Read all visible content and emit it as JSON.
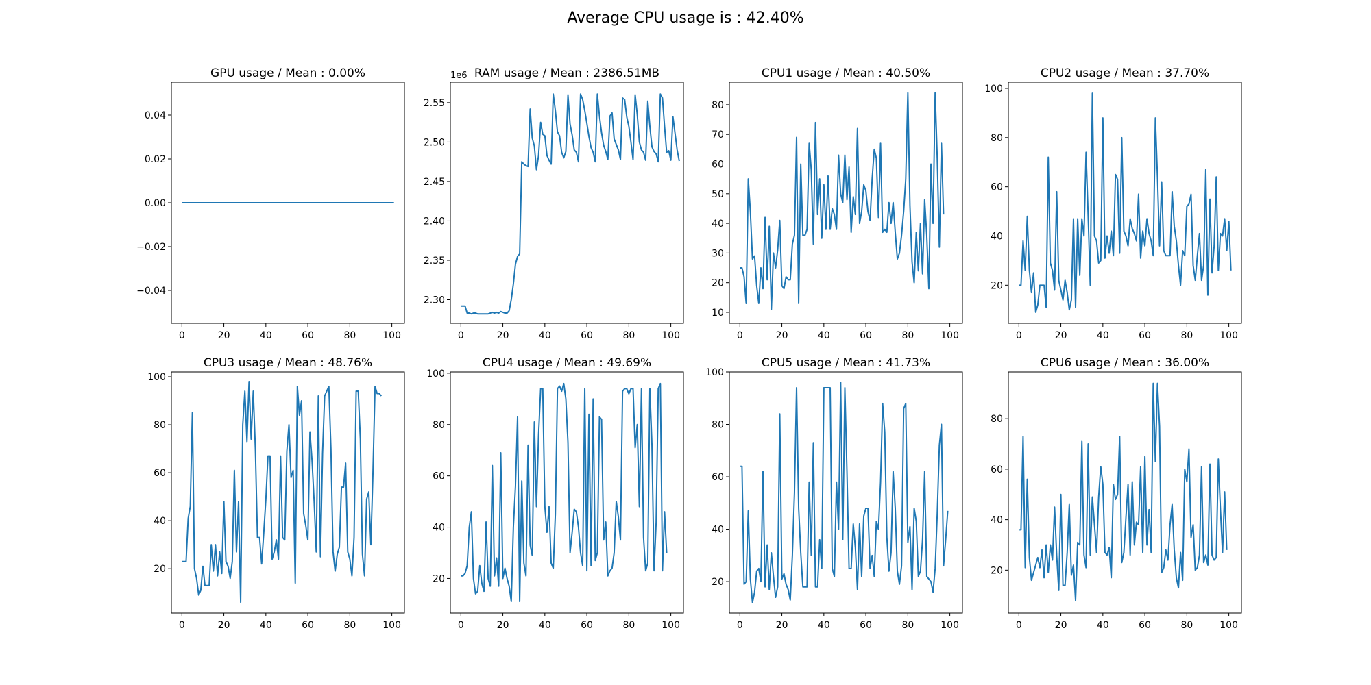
{
  "figure": {
    "title": "Average CPU usage is : 42.40%"
  },
  "chart_data": [
    {
      "type": "line",
      "title": "GPU usage / Mean : 0.00%",
      "xlim": [
        -5,
        106
      ],
      "ylim": [
        -0.055,
        0.055
      ],
      "xticks": [
        0,
        20,
        40,
        60,
        80,
        100
      ],
      "yticks": [
        -0.04,
        -0.02,
        0.0,
        0.02,
        0.04
      ],
      "ytick_labels": [
        "−0.04",
        "−0.02",
        "0.00",
        "0.02",
        "0.04"
      ],
      "offset_label": "",
      "series": [
        {
          "color": "#1f77b4",
          "values": [
            0,
            0,
            0,
            0,
            0,
            0,
            0,
            0,
            0,
            0,
            0,
            0,
            0,
            0,
            0,
            0,
            0,
            0,
            0,
            0,
            0,
            0,
            0,
            0,
            0,
            0,
            0,
            0,
            0,
            0,
            0,
            0,
            0,
            0,
            0,
            0,
            0,
            0,
            0,
            0,
            0,
            0,
            0,
            0,
            0,
            0,
            0,
            0,
            0,
            0,
            0,
            0,
            0,
            0,
            0,
            0,
            0,
            0,
            0,
            0,
            0,
            0,
            0,
            0,
            0,
            0,
            0,
            0,
            0,
            0,
            0,
            0,
            0,
            0,
            0,
            0,
            0,
            0,
            0,
            0,
            0,
            0,
            0,
            0,
            0,
            0,
            0,
            0,
            0,
            0,
            0,
            0,
            0,
            0,
            0,
            0,
            0,
            0,
            0,
            0,
            0,
            0
          ]
        }
      ]
    },
    {
      "type": "line",
      "title": "RAM usage / Mean : 2386.51MB",
      "xlim": [
        -5,
        106
      ],
      "ylim": [
        2.27,
        2.576
      ],
      "xticks": [
        0,
        20,
        40,
        60,
        80,
        100
      ],
      "yticks": [
        2.3,
        2.35,
        2.4,
        2.45,
        2.5,
        2.55
      ],
      "ytick_labels": [
        "2.30",
        "2.35",
        "2.40",
        "2.45",
        "2.50",
        "2.55"
      ],
      "offset_label": "1e6",
      "series": [
        {
          "color": "#1f77b4",
          "values": [
            2.292,
            2.292,
            2.292,
            2.283,
            2.283,
            2.282,
            2.283,
            2.283,
            2.282,
            2.282,
            2.282,
            2.282,
            2.282,
            2.282,
            2.283,
            2.284,
            2.283,
            2.284,
            2.283,
            2.285,
            2.284,
            2.283,
            2.283,
            2.286,
            2.3,
            2.32,
            2.345,
            2.355,
            2.358,
            2.475,
            2.472,
            2.47,
            2.469,
            2.542,
            2.505,
            2.495,
            2.465,
            2.483,
            2.525,
            2.51,
            2.508,
            2.483,
            2.477,
            2.472,
            2.561,
            2.54,
            2.513,
            2.508,
            2.487,
            2.48,
            2.488,
            2.56,
            2.523,
            2.509,
            2.49,
            2.487,
            2.475,
            2.561,
            2.554,
            2.54,
            2.524,
            2.507,
            2.493,
            2.487,
            2.475,
            2.561,
            2.533,
            2.512,
            2.496,
            2.488,
            2.478,
            2.533,
            2.537,
            2.504,
            2.497,
            2.49,
            2.478,
            2.556,
            2.554,
            2.532,
            2.52,
            2.5,
            2.478,
            2.56,
            2.535,
            2.5,
            2.49,
            2.487,
            2.477,
            2.552,
            2.52,
            2.494,
            2.488,
            2.485,
            2.475,
            2.561,
            2.556,
            2.52,
            2.487,
            2.489,
            2.477,
            2.532,
            2.511,
            2.49,
            2.476
          ]
        }
      ]
    },
    {
      "type": "line",
      "title": "CPU1 usage / Mean : 40.50%",
      "xlim": [
        -5,
        106
      ],
      "ylim": [
        6.3,
        87.6
      ],
      "xticks": [
        0,
        20,
        40,
        60,
        80,
        100
      ],
      "yticks": [
        10,
        20,
        30,
        40,
        50,
        60,
        70,
        80
      ],
      "ytick_labels": [
        "10",
        "20",
        "30",
        "40",
        "50",
        "60",
        "70",
        "80"
      ],
      "offset_label": "",
      "series": [
        {
          "color": "#1f77b4",
          "values": [
            25,
            25,
            22,
            13,
            55,
            44,
            28,
            29,
            19,
            13,
            25,
            18,
            42,
            21,
            39,
            11,
            30,
            25,
            31,
            41,
            19,
            18,
            22,
            21,
            21,
            33,
            36,
            69,
            13,
            60,
            36,
            36,
            38,
            67,
            58,
            33,
            74,
            43,
            55,
            35,
            53,
            38,
            56,
            38,
            45,
            43,
            38,
            63,
            50,
            47,
            63,
            48,
            59,
            37,
            49,
            43,
            72,
            40,
            44,
            53,
            51,
            44,
            41,
            55,
            65,
            62,
            42,
            67,
            37,
            38,
            37,
            47,
            40,
            47,
            37,
            28,
            30,
            36,
            44,
            55,
            84,
            46,
            27,
            20,
            37,
            24,
            40,
            23,
            48,
            36,
            18,
            60,
            40,
            84,
            62,
            32,
            67,
            43
          ]
        }
      ]
    },
    {
      "type": "line",
      "title": "CPU2 usage / Mean : 37.70%",
      "xlim": [
        -5,
        106
      ],
      "ylim": [
        4.5,
        102.5
      ],
      "xticks": [
        0,
        20,
        40,
        60,
        80,
        100
      ],
      "yticks": [
        20,
        40,
        60,
        80,
        100
      ],
      "ytick_labels": [
        "20",
        "40",
        "60",
        "80",
        "100"
      ],
      "offset_label": "",
      "series": [
        {
          "color": "#1f77b4",
          "values": [
            20,
            20,
            38,
            26,
            48,
            26,
            17,
            25,
            9,
            12,
            20,
            20,
            20,
            11,
            72,
            29,
            26,
            18,
            58,
            22,
            18,
            14,
            22,
            17,
            10,
            14,
            47,
            11,
            47,
            24,
            47,
            40,
            74,
            48,
            20,
            98,
            40,
            38,
            29,
            30,
            88,
            31,
            40,
            33,
            42,
            32,
            65,
            63,
            33,
            80,
            42,
            40,
            36,
            47,
            43,
            41,
            38,
            57,
            31,
            42,
            36,
            47,
            41,
            38,
            32,
            88,
            64,
            36,
            62,
            34,
            32,
            32,
            32,
            58,
            44,
            38,
            28,
            20,
            34,
            32,
            52,
            53,
            57,
            28,
            22,
            32,
            41,
            22,
            28,
            67,
            16,
            55,
            25,
            36,
            64,
            26,
            41,
            40,
            47,
            34,
            46,
            26
          ]
        }
      ]
    },
    {
      "type": "line",
      "title": "CPU3 usage / Mean : 48.76%",
      "xlim": [
        -5,
        106
      ],
      "ylim": [
        1.5,
        102
      ],
      "xticks": [
        0,
        20,
        40,
        60,
        80,
        100
      ],
      "yticks": [
        20,
        40,
        60,
        80,
        100
      ],
      "ytick_labels": [
        "20",
        "40",
        "60",
        "80",
        "100"
      ],
      "offset_label": "",
      "series": [
        {
          "color": "#1f77b4",
          "values": [
            23,
            23,
            23,
            41,
            46,
            85,
            20,
            16,
            9,
            11,
            21,
            13,
            13,
            13,
            30,
            19,
            30,
            17,
            27,
            18,
            48,
            23,
            21,
            16,
            23,
            61,
            27,
            48,
            6,
            80,
            94,
            73,
            98,
            74,
            94,
            70,
            33,
            33,
            22,
            35,
            49,
            67,
            67,
            24,
            27,
            32,
            24,
            67,
            33,
            32,
            69,
            80,
            58,
            61,
            14,
            96,
            84,
            90,
            43,
            38,
            32,
            77,
            65,
            48,
            27,
            92,
            25,
            68,
            92,
            94,
            96,
            70,
            27,
            19,
            26,
            29,
            54,
            54,
            64,
            27,
            24,
            17,
            33,
            94,
            94,
            74,
            26,
            17,
            49,
            52,
            30,
            60,
            96,
            93,
            93,
            92
          ]
        }
      ]
    },
    {
      "type": "line",
      "title": "CPU4 usage / Mean : 49.69%",
      "xlim": [
        -5,
        106
      ],
      "ylim": [
        6.5,
        100.5
      ],
      "xticks": [
        0,
        20,
        40,
        60,
        80,
        100
      ],
      "yticks": [
        20,
        40,
        60,
        80,
        100
      ],
      "ytick_labels": [
        "20",
        "40",
        "60",
        "80",
        "100"
      ],
      "offset_label": "",
      "series": [
        {
          "color": "#1f77b4",
          "values": [
            21,
            21,
            22,
            25,
            40,
            46,
            20,
            14,
            15,
            25,
            18,
            15,
            42,
            20,
            17,
            64,
            21,
            28,
            17,
            69,
            20,
            24,
            20,
            17,
            11,
            40,
            56,
            83,
            11,
            58,
            26,
            21,
            72,
            33,
            29,
            81,
            48,
            76,
            94,
            94,
            48,
            38,
            48,
            26,
            24,
            45,
            94,
            95,
            93,
            96,
            90,
            73,
            30,
            38,
            47,
            46,
            40,
            30,
            25,
            94,
            23,
            84,
            25,
            90,
            27,
            30,
            83,
            82,
            35,
            42,
            21,
            23,
            24,
            30,
            50,
            44,
            35,
            93,
            94,
            94,
            92,
            94,
            94,
            71,
            80,
            48,
            94,
            36,
            23,
            26,
            94,
            72,
            23,
            42,
            94,
            96,
            23,
            46,
            30
          ]
        }
      ]
    },
    {
      "type": "line",
      "title": "CPU5 usage / Mean : 41.73%",
      "xlim": [
        -5,
        106
      ],
      "ylim": [
        8,
        100
      ],
      "xticks": [
        0,
        20,
        40,
        60,
        80,
        100
      ],
      "yticks": [
        20,
        40,
        60,
        80,
        100
      ],
      "ytick_labels": [
        "20",
        "40",
        "60",
        "80",
        "100"
      ],
      "offset_label": "",
      "series": [
        {
          "color": "#1f77b4",
          "values": [
            64,
            64,
            19,
            20,
            47,
            21,
            12,
            16,
            24,
            25,
            20,
            62,
            18,
            34,
            17,
            31,
            22,
            14,
            18,
            84,
            21,
            23,
            19,
            17,
            13,
            30,
            54,
            94,
            48,
            31,
            18,
            18,
            18,
            58,
            30,
            73,
            18,
            18,
            36,
            25,
            94,
            94,
            94,
            94,
            25,
            22,
            58,
            40,
            96,
            36,
            94,
            62,
            25,
            25,
            42,
            33,
            17,
            42,
            22,
            45,
            48,
            48,
            25,
            30,
            22,
            43,
            40,
            58,
            88,
            77,
            37,
            24,
            31,
            62,
            48,
            24,
            19,
            26,
            86,
            88,
            35,
            41,
            17,
            48,
            43,
            22,
            24,
            36,
            62,
            22,
            21,
            20,
            16,
            25,
            46,
            72,
            80,
            26,
            36,
            47
          ]
        }
      ]
    },
    {
      "type": "line",
      "title": "CPU6 usage / Mean : 36.00%",
      "xlim": [
        -5,
        106
      ],
      "ylim": [
        3,
        98.5
      ],
      "xticks": [
        0,
        20,
        40,
        60,
        80,
        100
      ],
      "yticks": [
        20,
        40,
        60,
        80
      ],
      "ytick_labels": [
        "20",
        "40",
        "60",
        "80"
      ],
      "offset_label": "",
      "series": [
        {
          "color": "#1f77b4",
          "values": [
            36,
            36,
            73,
            21,
            56,
            25,
            16,
            19,
            22,
            25,
            21,
            28,
            17,
            30,
            19,
            30,
            24,
            45,
            26,
            12,
            50,
            14,
            14,
            27,
            46,
            18,
            22,
            8,
            31,
            30,
            71,
            26,
            21,
            70,
            26,
            49,
            38,
            27,
            49,
            61,
            54,
            27,
            26,
            29,
            17,
            54,
            48,
            50,
            73,
            23,
            27,
            41,
            54,
            26,
            55,
            30,
            39,
            38,
            61,
            27,
            65,
            30,
            44,
            27,
            94,
            63,
            94,
            77,
            19,
            21,
            28,
            24,
            38,
            46,
            28,
            17,
            13,
            27,
            16,
            60,
            55,
            68,
            33,
            38,
            20,
            21,
            26,
            61,
            23,
            26,
            22,
            62,
            26,
            24,
            25,
            64,
            44,
            27,
            51,
            28
          ]
        }
      ]
    }
  ]
}
